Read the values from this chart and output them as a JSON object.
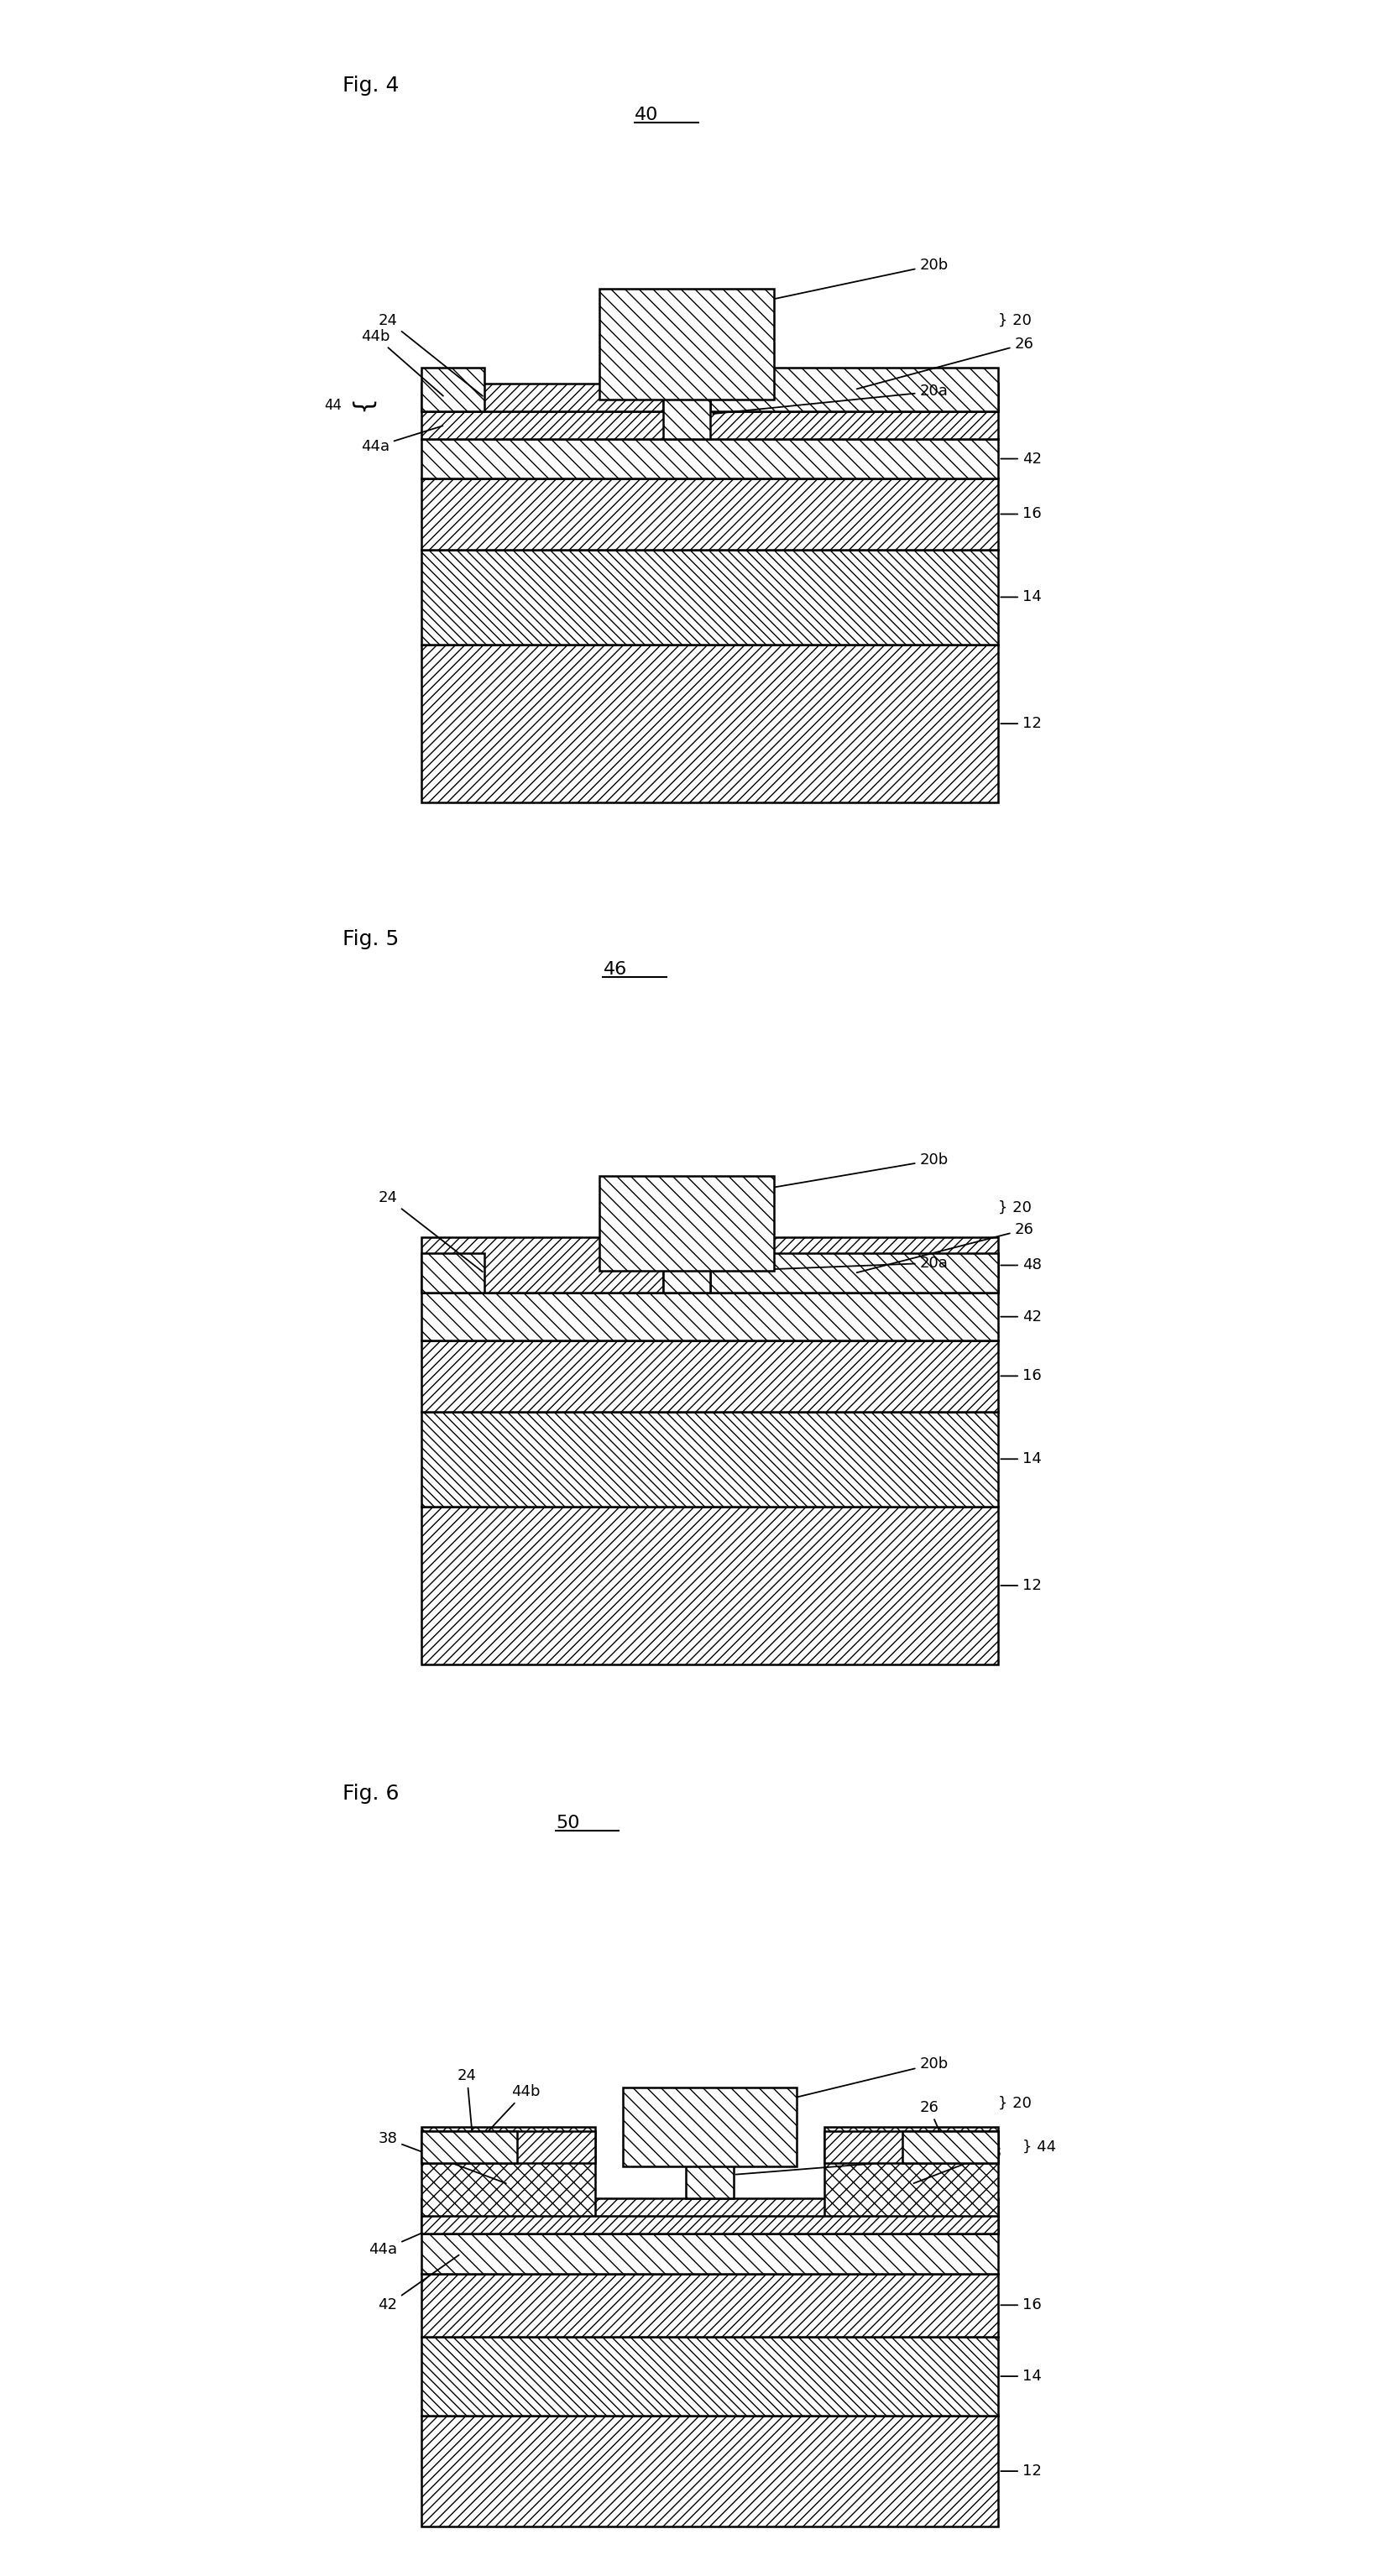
{
  "background_color": "#ffffff",
  "lw": 1.8,
  "fig4_label": "Fig. 4",
  "fig5_label": "Fig. 5",
  "fig6_label": "Fig. 6",
  "fig4_num": "40",
  "fig5_num": "46",
  "fig6_num": "50"
}
